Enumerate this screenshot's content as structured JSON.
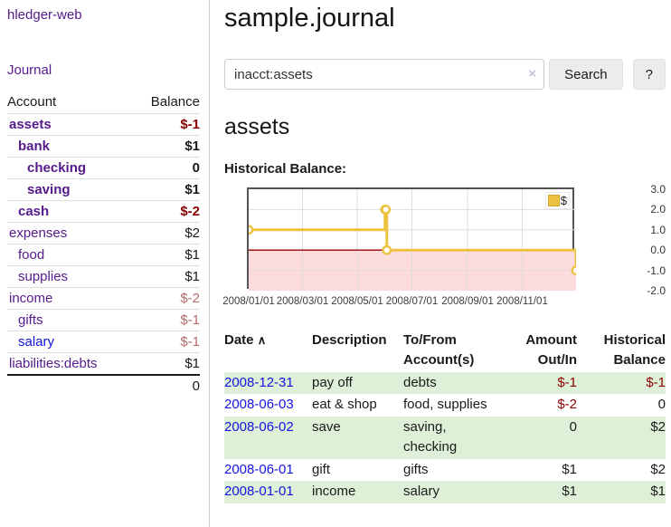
{
  "sidebar": {
    "brand": "hledger-web",
    "journal_link": "Journal",
    "accounts": {
      "header_account": "Account",
      "header_balance": "Balance",
      "rows": [
        {
          "name": "assets",
          "depth": 1,
          "bold": true,
          "balance": "$-1",
          "balance_style": "neg-strong",
          "link": "purple"
        },
        {
          "name": "bank",
          "depth": 2,
          "bold": true,
          "balance": "$1",
          "balance_style": "",
          "link": "purple"
        },
        {
          "name": "checking",
          "depth": 3,
          "bold": true,
          "balance": "0",
          "balance_style": "",
          "link": "purple"
        },
        {
          "name": "saving",
          "depth": 3,
          "bold": true,
          "balance": "$1",
          "balance_style": "",
          "link": "purple"
        },
        {
          "name": "cash",
          "depth": 2,
          "bold": true,
          "balance": "$-2",
          "balance_style": "neg-strong",
          "link": "purple"
        },
        {
          "name": "expenses",
          "depth": 1,
          "bold": false,
          "balance": "$2",
          "balance_style": "",
          "link": "purple"
        },
        {
          "name": "food",
          "depth": 2,
          "bold": false,
          "balance": "$1",
          "balance_style": "",
          "link": "purple"
        },
        {
          "name": "supplies",
          "depth": 2,
          "bold": false,
          "balance": "$1",
          "balance_style": "",
          "link": "purple"
        },
        {
          "name": "income",
          "depth": 1,
          "bold": false,
          "balance": "$-2",
          "balance_style": "neg-soft",
          "link": "purple"
        },
        {
          "name": "gifts",
          "depth": 2,
          "bold": false,
          "balance": "$-1",
          "balance_style": "neg-soft",
          "link": "purple"
        },
        {
          "name": "salary",
          "depth": 2,
          "bold": false,
          "balance": "$-1",
          "balance_style": "neg-soft",
          "link": "blue"
        },
        {
          "name": "liabilities:debts",
          "depth": 1,
          "bold": false,
          "balance": "$1",
          "balance_style": "",
          "link": "purple"
        }
      ],
      "total": "0"
    }
  },
  "main": {
    "title": "sample.journal",
    "search": {
      "value": "inacct:assets",
      "clear_icon": "×",
      "search_button": "Search",
      "help_button": "?"
    },
    "account_heading": "assets",
    "chart_title": "Historical Balance:"
  },
  "chart_data": {
    "type": "line",
    "step": true,
    "title": "Historical Balance:",
    "series": [
      {
        "name": "$",
        "color": "#EDC240",
        "points": [
          {
            "x": "2008-01-01",
            "y": 1
          },
          {
            "x": "2008-06-01",
            "y": 2
          },
          {
            "x": "2008-06-02",
            "y": 2
          },
          {
            "x": "2008-06-03",
            "y": 0
          },
          {
            "x": "2008-12-31",
            "y": -1
          }
        ]
      }
    ],
    "x_ticks": [
      "2008/01/01",
      "2008/03/01",
      "2008/05/01",
      "2008/07/01",
      "2008/09/01",
      "2008/11/01"
    ],
    "y_ticks": [
      "3.0",
      "2.0",
      "1.0",
      "0.0",
      "-1.0",
      "-2.0"
    ],
    "ylim": [
      -2,
      3
    ],
    "x_range": [
      "2008-01-01",
      "2008-12-31"
    ],
    "grid": true,
    "gridline_color": "#dddddd",
    "border_color": "#545454",
    "zero_line_color": "#990000",
    "negative_region_color": "#fbdbdb",
    "legend_position": "top-right"
  },
  "register": {
    "headers": {
      "date": "Date",
      "date_sort_icon": "∧",
      "description": "Description",
      "accounts": "To/From Account(s)",
      "amount": "Amount Out/In",
      "balance": "Historical Balance"
    },
    "rows": [
      {
        "date": "2008-12-31",
        "description": "pay off",
        "accounts": "debts",
        "amount": "$-1",
        "amount_style": "neg-strong",
        "balance": "$-1",
        "balance_style": "neg-strong",
        "stripe": true
      },
      {
        "date": "2008-06-03",
        "description": "eat & shop",
        "accounts": "food, supplies",
        "amount": "$-2",
        "amount_style": "neg-strong",
        "balance": "0",
        "balance_style": "",
        "stripe": false
      },
      {
        "date": "2008-06-02",
        "description": "save",
        "accounts": "saving, checking",
        "amount": "0",
        "amount_style": "",
        "balance": "$2",
        "balance_style": "",
        "stripe": true
      },
      {
        "date": "2008-06-01",
        "description": "gift",
        "accounts": "gifts",
        "amount": "$1",
        "amount_style": "",
        "balance": "$2",
        "balance_style": "",
        "stripe": false
      },
      {
        "date": "2008-01-01",
        "description": "income",
        "accounts": "salary",
        "amount": "$1",
        "amount_style": "",
        "balance": "$1",
        "balance_style": "",
        "stripe": true
      }
    ]
  }
}
